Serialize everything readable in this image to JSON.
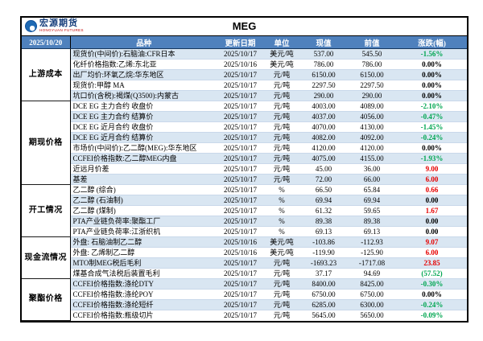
{
  "logo": {
    "brand_cn": "宏源期货",
    "brand_en": "HONGYUAN FUTURES"
  },
  "title": "MEG",
  "header": {
    "date": "2025/10/20",
    "columns": [
      "品种",
      "更新日期",
      "单位",
      "现值",
      "前值",
      "涨跌(幅)"
    ]
  },
  "colors": {
    "header_bg": "#4f81bd",
    "row_stripe": "#d9e6f2",
    "up_red": "#e60000",
    "down_green": "#00a651",
    "flat_black": "#000000"
  },
  "sections": [
    {
      "label": "上游成本",
      "rows": [
        {
          "name": "现货价(中间价):石脑油:CFR日本",
          "date": "2025/10/17",
          "unit": "美元/吨",
          "current": "537.00",
          "previous": "545.50",
          "change": "-1.56%",
          "trend": "down"
        },
        {
          "name": "化纤价格指数:乙烯:东北亚",
          "date": "2025/10/16",
          "unit": "美元/吨",
          "current": "786.00",
          "previous": "786.00",
          "change": "0.00%",
          "trend": "flat"
        },
        {
          "name": "出厂均价:环氧乙烷:华东地区",
          "date": "2025/10/17",
          "unit": "元/吨",
          "current": "6150.00",
          "previous": "6150.00",
          "change": "0.00%",
          "trend": "flat"
        },
        {
          "name": "现货价:甲醇 MA",
          "date": "2025/10/17",
          "unit": "元/吨",
          "current": "2297.50",
          "previous": "2297.50",
          "change": "0.00%",
          "trend": "flat"
        },
        {
          "name": "坑口价(含税):褐煤(Q3500):内蒙古",
          "date": "2025/10/17",
          "unit": "元/吨",
          "current": "290.00",
          "previous": "290.00",
          "change": "0.00%",
          "trend": "flat"
        }
      ]
    },
    {
      "label": "期现价格",
      "rows": [
        {
          "name": "DCE EG 主力合约 收盘价",
          "date": "2025/10/17",
          "unit": "元/吨",
          "current": "4003.00",
          "previous": "4089.00",
          "change": "-2.10%",
          "trend": "down"
        },
        {
          "name": "DCE EG 主力合约 结算价",
          "date": "2025/10/17",
          "unit": "元/吨",
          "current": "4037.00",
          "previous": "4056.00",
          "change": "-0.47%",
          "trend": "down"
        },
        {
          "name": "DCE EG 近月合约 收盘价",
          "date": "2025/10/17",
          "unit": "元/吨",
          "current": "4070.00",
          "previous": "4130.00",
          "change": "-1.45%",
          "trend": "down"
        },
        {
          "name": "DCE EG 近月合约 结算价",
          "date": "2025/10/17",
          "unit": "元/吨",
          "current": "4082.00",
          "previous": "4092.00",
          "change": "-0.24%",
          "trend": "down"
        },
        {
          "name": "市场价(中间价):乙二醇(MEG):华东地区",
          "date": "2025/10/17",
          "unit": "元/吨",
          "current": "4120.00",
          "previous": "4120.00",
          "change": "0.00%",
          "trend": "flat"
        },
        {
          "name": "CCFEI价格指数:乙二醇MEG内盘",
          "date": "2025/10/17",
          "unit": "元/吨",
          "current": "4075.00",
          "previous": "4155.00",
          "change": "-1.93%",
          "trend": "down"
        },
        {
          "name": "近远月价差",
          "date": "2025/10/17",
          "unit": "元/吨",
          "current": "45.00",
          "previous": "36.00",
          "change": "9.00",
          "trend": "up"
        },
        {
          "name": "基差",
          "date": "2025/10/17",
          "unit": "元/吨",
          "current": "72.00",
          "previous": "66.00",
          "change": "6.00",
          "trend": "up"
        }
      ]
    },
    {
      "label": "开工情况",
      "rows": [
        {
          "name": "乙二醇 (综合)",
          "date": "2025/10/17",
          "unit": "%",
          "current": "66.50",
          "previous": "65.84",
          "change": "0.66",
          "trend": "up"
        },
        {
          "name": "乙二醇 (石油制)",
          "date": "2025/10/17",
          "unit": "%",
          "current": "69.94",
          "previous": "69.94",
          "change": "0.00",
          "trend": "flat"
        },
        {
          "name": "乙二醇 (煤制)",
          "date": "2025/10/17",
          "unit": "%",
          "current": "61.32",
          "previous": "59.65",
          "change": "1.67",
          "trend": "up"
        },
        {
          "name": "PTA产业链负荷率:聚酯工厂",
          "date": "2025/10/17",
          "unit": "%",
          "current": "89.38",
          "previous": "89.38",
          "change": "0.00",
          "trend": "flat"
        },
        {
          "name": "PTA产业链负荷率:江浙织机",
          "date": "2025/10/17",
          "unit": "%",
          "current": "69.13",
          "previous": "69.13",
          "change": "0.00",
          "trend": "flat"
        }
      ]
    },
    {
      "label": "现金流情况",
      "rows": [
        {
          "name": "外盘: 石脑油制乙二醇",
          "date": "2025/10/16",
          "unit": "美元/吨",
          "current": "-103.86",
          "previous": "-112.93",
          "change": "9.07",
          "trend": "up"
        },
        {
          "name": "外盘: 乙烯制乙二醇",
          "date": "2025/10/16",
          "unit": "美元/吨",
          "current": "-119.90",
          "previous": "-125.90",
          "change": "6.00",
          "trend": "up"
        },
        {
          "name": "MTO制MEG税后毛利",
          "date": "2025/10/17",
          "unit": "元/吨",
          "current": "-1693.23",
          "previous": "-1717.08",
          "change": "23.85",
          "trend": "up"
        },
        {
          "name": "煤基合成气法税后装置毛利",
          "date": "2025/10/17",
          "unit": "元/吨",
          "current": "37.17",
          "previous": "94.69",
          "change": "(57.52)",
          "trend": "down"
        }
      ]
    },
    {
      "label": "聚酯价格",
      "rows": [
        {
          "name": "CCFEI价格指数:涤纶DTY",
          "date": "2025/10/17",
          "unit": "元/吨",
          "current": "8400.00",
          "previous": "8425.00",
          "change": "-0.30%",
          "trend": "down"
        },
        {
          "name": "CCFEI价格指数:涤纶POY",
          "date": "2025/10/17",
          "unit": "元/吨",
          "current": "6750.00",
          "previous": "6750.00",
          "change": "0.00%",
          "trend": "flat"
        },
        {
          "name": "CCFEI价格指数:涤纶短纤",
          "date": "2025/10/17",
          "unit": "元/吨",
          "current": "6285.00",
          "previous": "6300.00",
          "change": "-0.24%",
          "trend": "down"
        },
        {
          "name": "CCFEI价格指数:瓶级切片",
          "date": "2025/10/17",
          "unit": "元/吨",
          "current": "5645.00",
          "previous": "5650.00",
          "change": "-0.09%",
          "trend": "down"
        }
      ]
    }
  ]
}
